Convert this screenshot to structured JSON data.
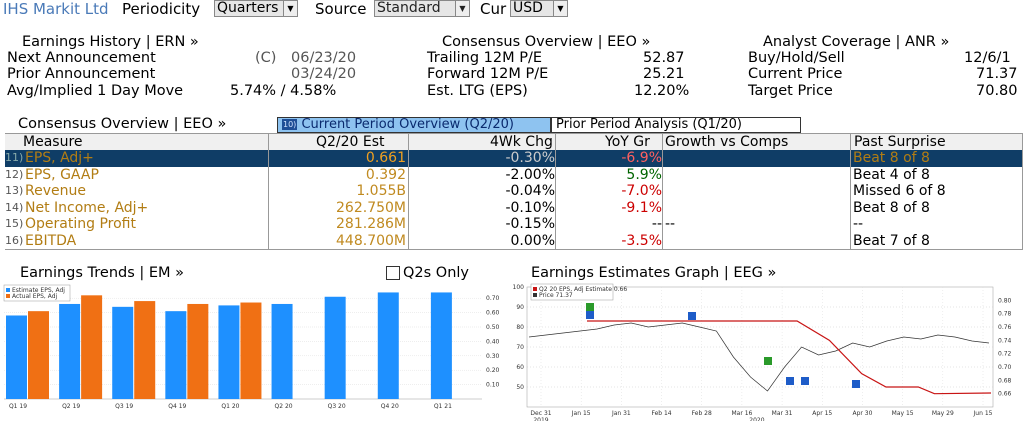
{
  "topbar": {
    "ticker": "IHS Markit Ltd",
    "periodicity_label": "Periodicity",
    "periodicity_value": "Quarters",
    "source_label": "Source",
    "source_value": "Standard",
    "cur_label": "Cur",
    "cur_value": "USD"
  },
  "summary": {
    "earnings_history": {
      "title": "Earnings History | ERN »",
      "next_label": "Next Announcement",
      "next_flag": "(C)",
      "next_date": "06/23/20",
      "prior_label": "Prior Announcement",
      "prior_date": "03/24/20",
      "move_label": "Avg/Implied 1 Day Move",
      "move_value": "5.74% / 4.58%"
    },
    "consensus": {
      "title": "Consensus Overview | EEO »",
      "trailing_label": "Trailing 12M P/E",
      "trailing_value": "52.87",
      "forward_label": "Forward 12M P/E",
      "forward_value": "25.21",
      "ltg_label": "Est. LTG (EPS)",
      "ltg_value": "12.20%"
    },
    "analyst": {
      "title": "Analyst Coverage | ANR »",
      "bhs_label": "Buy/Hold/Sell",
      "bhs_value": "12/6/1",
      "price_label": "Current Price",
      "price_value": "71.37",
      "target_label": "Target Price",
      "target_value": "70.80"
    }
  },
  "overview": {
    "title": "Consensus Overview | EEO »",
    "tab_current_num": "10)",
    "tab_current": "Current Period Overview (Q2/20)",
    "tab_prior": "Prior Period Analysis (Q1/20)",
    "headers": [
      "Measure",
      "Q2/20 Est",
      "4Wk Chg",
      "YoY Gr",
      "Growth vs Comps",
      "Past Surprise"
    ],
    "rows": [
      {
        "num": "11)",
        "measure": "EPS, Adj+",
        "est": "0.661",
        "chg": "-0.30%",
        "yoy": "-6.9%",
        "comps": "",
        "surprise": "Beat 8 of 8"
      },
      {
        "num": "12)",
        "measure": "EPS, GAAP",
        "est": "0.392",
        "chg": "-2.00%",
        "yoy": "5.9%",
        "comps": "",
        "surprise": "Beat 4 of 8"
      },
      {
        "num": "13)",
        "measure": "Revenue",
        "est": "1.055B",
        "chg": "-0.04%",
        "yoy": "-7.0%",
        "comps": "",
        "surprise": "Missed 6 of 8"
      },
      {
        "num": "14)",
        "measure": "Net Income, Adj+",
        "est": "262.750M",
        "chg": "-0.10%",
        "yoy": "-9.1%",
        "comps": "",
        "surprise": "Beat 8 of 8"
      },
      {
        "num": "15)",
        "measure": "Operating Profit",
        "est": "281.286M",
        "chg": "-0.15%",
        "yoy": "--",
        "comps": "--",
        "surprise": "--"
      },
      {
        "num": "16)",
        "measure": "EBITDA",
        "est": "448.700M",
        "chg": "0.00%",
        "yoy": "-3.5%",
        "comps": "",
        "surprise": "Beat 7 of 8"
      }
    ]
  },
  "charts_ui": {
    "trends_title": "Earnings Trends | EM »",
    "q2s_only": "Q2s Only",
    "estimates_title": "Earnings Estimates Graph | EEG »"
  },
  "colors": {
    "blue": "#1e90ff",
    "orange": "#f07014",
    "gold": "#b27d14",
    "red": "#cc0000",
    "green": "#006400",
    "selected_row": "#0f3d66"
  },
  "chart_data": [
    {
      "type": "bar",
      "categories": [
        "Q1 19",
        "Q2 19",
        "Q3 19",
        "Q4 19",
        "Q1 20",
        "Q2 20",
        "Q3 20",
        "Q4 20",
        "Q1 21"
      ],
      "series": [
        {
          "name": "Estimate EPS, Adj",
          "values": [
            0.58,
            0.66,
            0.64,
            0.61,
            0.65,
            0.66,
            0.71,
            0.74,
            0.74
          ]
        },
        {
          "name": "Actual EPS, Adj",
          "values": [
            0.61,
            0.72,
            0.68,
            0.66,
            0.67,
            null,
            null,
            null,
            null
          ]
        }
      ],
      "yticks": [
        "0.10",
        "0.20",
        "0.30",
        "0.40",
        "0.50",
        "0.60",
        "0.70"
      ],
      "ylim": [
        0,
        0.75
      ],
      "legend": "top-left"
    },
    {
      "type": "line",
      "series": [
        {
          "name": "Q2 20 EPS, Adj Estimate 0.66"
        },
        {
          "name": "Price 71.37"
        }
      ],
      "x_ticks": [
        "Dec 31",
        "Jan 15",
        "Jan 31",
        "Feb 14",
        "Feb 28",
        "Mar 16",
        "Mar 31",
        "Apr 15",
        "Apr 30",
        "May 15",
        "May 29",
        "Jun 15"
      ],
      "x_years": [
        "2019",
        "2020"
      ],
      "left_ticks": [
        "50",
        "60",
        "70",
        "80",
        "90",
        "100"
      ],
      "right_ticks": [
        "0.66",
        "0.68",
        "0.70",
        "0.72",
        "0.74",
        "0.76",
        "0.78",
        "0.80"
      ],
      "left_ylim": [
        40,
        100
      ],
      "right_ylim": [
        0.64,
        0.82
      ],
      "price_values": [
        75,
        76,
        77,
        78,
        79,
        81,
        82,
        80,
        81,
        82,
        80,
        78,
        65,
        55,
        48,
        60,
        70,
        66,
        68,
        72,
        70,
        73,
        75,
        74,
        76,
        75,
        73,
        72
      ],
      "estimate_steps": [
        [
          0,
          0.769
        ],
        [
          0.3,
          0.769
        ],
        [
          0.52,
          0.769
        ],
        [
          0.6,
          0.74
        ],
        [
          0.68,
          0.69
        ],
        [
          0.74,
          0.67
        ],
        [
          0.82,
          0.67
        ],
        [
          0.86,
          0.66
        ],
        [
          1,
          0.661
        ]
      ],
      "legend": "top-left"
    }
  ]
}
